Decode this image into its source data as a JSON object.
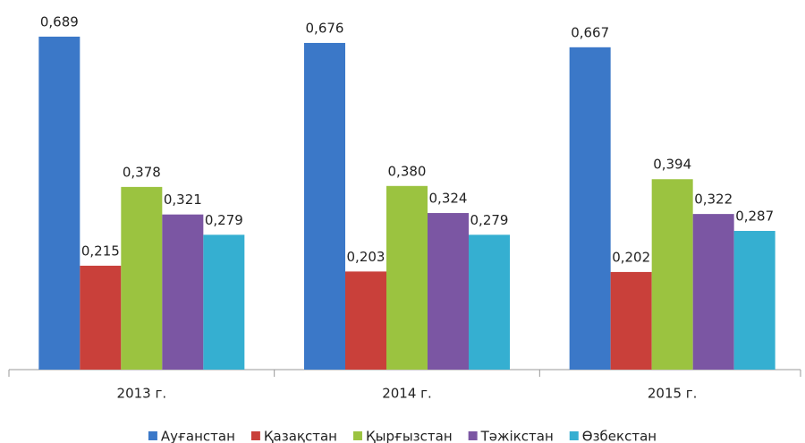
{
  "chart_data": {
    "type": "bar",
    "categories": [
      "2013 г.",
      "2014 г.",
      "2015 г."
    ],
    "series": [
      {
        "name": "Ауғанстан",
        "color": "#3b78c8",
        "values": [
          0.689,
          0.676,
          0.667
        ],
        "value_labels": [
          "0,689",
          "0,676",
          "0,667"
        ]
      },
      {
        "name": "Қазақстан",
        "color": "#c9403a",
        "values": [
          0.215,
          0.203,
          0.202
        ],
        "value_labels": [
          "0,215",
          "0,203",
          "0,202"
        ]
      },
      {
        "name": "Қырғызстан",
        "color": "#9bc340",
        "values": [
          0.378,
          0.38,
          0.394
        ],
        "value_labels": [
          "0,378",
          "0,380",
          "0,394"
        ]
      },
      {
        "name": "Тәжікстан",
        "color": "#7b56a3",
        "values": [
          0.321,
          0.324,
          0.322
        ],
        "value_labels": [
          "0,321",
          "0,324",
          "0,322"
        ]
      },
      {
        "name": "Өзбекстан",
        "color": "#35afd1",
        "values": [
          0.279,
          0.279,
          0.287
        ],
        "value_labels": [
          "0,279",
          "0,279",
          "0,287"
        ]
      }
    ],
    "ylim": [
      0,
      0.75
    ],
    "legend": "bottom"
  }
}
